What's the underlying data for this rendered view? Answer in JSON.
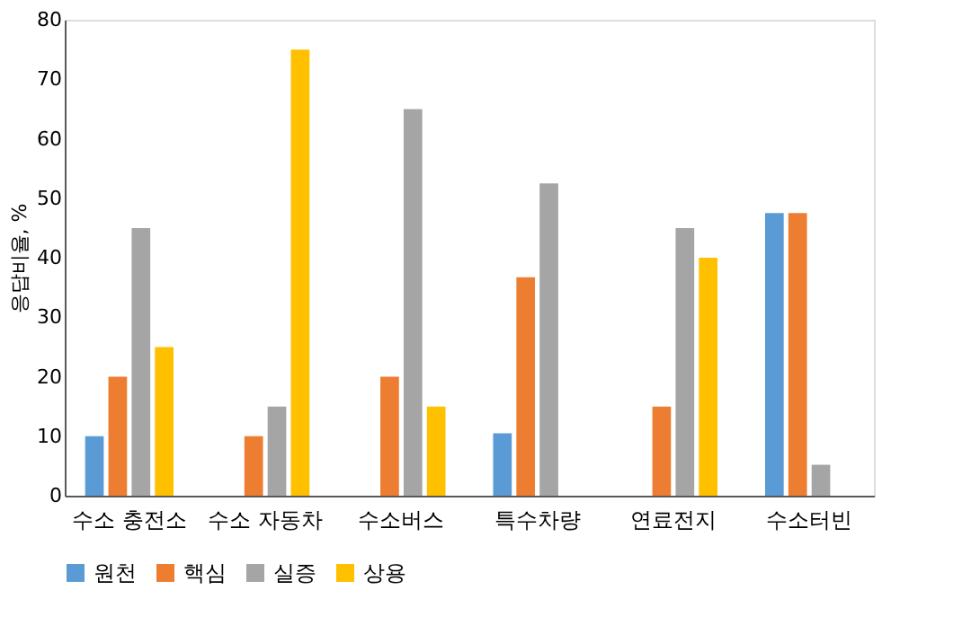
{
  "chart_data": {
    "type": "bar",
    "ylabel": "응답비율, %",
    "categories": [
      "수소 충전소",
      "수소 자동차",
      "수소버스",
      "특수차량",
      "연료전지",
      "수소터빈"
    ],
    "series": [
      {
        "name": "원천",
        "color": "#5b9bd5",
        "values": [
          10,
          null,
          null,
          10.5,
          null,
          47.5
        ]
      },
      {
        "name": "핵심",
        "color": "#ed7d31",
        "values": [
          20,
          10,
          20,
          36.7,
          15,
          47.5
        ]
      },
      {
        "name": "실증",
        "color": "#a5a5a5",
        "values": [
          45,
          15,
          65,
          52.5,
          45,
          5.2
        ]
      },
      {
        "name": "상용",
        "color": "#ffc000",
        "values": [
          25,
          75,
          15,
          null,
          40,
          null
        ]
      }
    ],
    "ylim": [
      0,
      80
    ],
    "yticks": [
      0,
      10,
      20,
      30,
      40,
      50,
      60,
      70,
      80
    ],
    "grid": false,
    "legend": "bottom"
  }
}
